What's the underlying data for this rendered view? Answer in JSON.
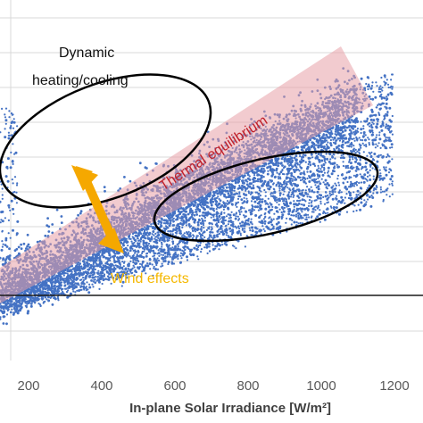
{
  "chart_data": {
    "type": "scatter",
    "title": "",
    "xlabel": "In-plane Solar Irradiance [W/m²]",
    "ylabel": "",
    "xlim": [
      120,
      1330
    ],
    "x_ticks": [
      "200",
      "400",
      "600",
      "800",
      "1000",
      "1200"
    ],
    "grid": true,
    "point_color": "#4472c4",
    "annotations": {
      "dynamic_line1": "Dynamic",
      "dynamic_line2": "heating/cooling",
      "thermal": "Thermal equilibrium",
      "wind": "Wind effects"
    },
    "colors": {
      "equilibrium_band": "#e8a0a8",
      "wind_arrow": "#f5a800",
      "ellipse": "#000000",
      "gridline": "#d9d9d9"
    }
  }
}
